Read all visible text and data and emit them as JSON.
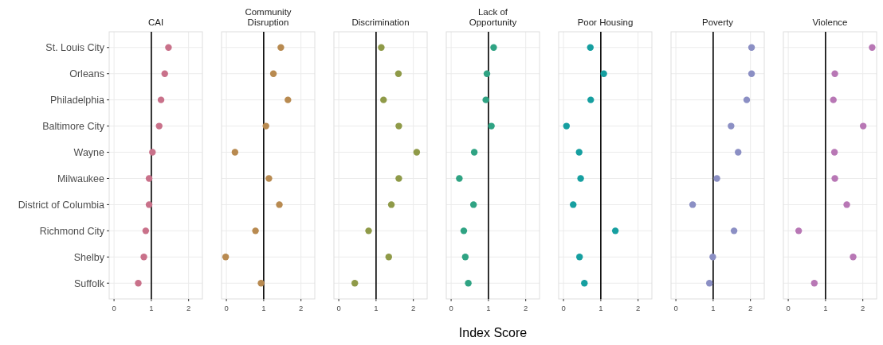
{
  "chart_data": [
    {
      "type": "scatter",
      "title": "CAI",
      "orientation": "horizontal",
      "categories": [
        "St. Louis City",
        "Orleans",
        "Philadelphia",
        "Baltimore City",
        "Wayne",
        "Milwaukee",
        "District of Columbia",
        "Richmond City",
        "Shelby",
        "Suffolk"
      ],
      "values": [
        1.46,
        1.36,
        1.26,
        1.21,
        1.03,
        0.94,
        0.94,
        0.85,
        0.8,
        0.65
      ],
      "color": "#c9718a",
      "xlim": [
        -0.13,
        2.37
      ],
      "xticks": [
        0,
        1,
        2
      ],
      "grid": true,
      "marker": "circle",
      "ref_lines": [
        {
          "axis": "x",
          "value": 1,
          "color": "#000000"
        }
      ]
    },
    {
      "type": "scatter",
      "title": "Community Disruption",
      "orientation": "horizontal",
      "tick_labels": "x",
      "categories": [
        "St. Louis City",
        "Orleans",
        "Philadelphia",
        "Baltimore City",
        "Wayne",
        "Milwaukee",
        "District of Columbia",
        "Richmond City",
        "Shelby",
        "Suffolk"
      ],
      "values": [
        1.46,
        1.26,
        1.65,
        1.06,
        0.23,
        1.14,
        1.42,
        0.78,
        -0.02,
        0.93
      ],
      "color": "#b88a50",
      "xlim": [
        -0.13,
        2.37
      ],
      "xticks": [
        0,
        1,
        2
      ],
      "grid": true,
      "marker": "circle",
      "ref_lines": [
        {
          "axis": "x",
          "value": 1,
          "color": "#000000"
        }
      ]
    },
    {
      "type": "scatter",
      "title": "Discrimination",
      "orientation": "horizontal",
      "tick_labels": "x",
      "categories": [
        "St. Louis City",
        "Orleans",
        "Philadelphia",
        "Baltimore City",
        "Wayne",
        "Milwaukee",
        "District of Columbia",
        "Richmond City",
        "Shelby",
        "Suffolk"
      ],
      "values": [
        1.14,
        1.6,
        1.2,
        1.61,
        2.09,
        1.61,
        1.41,
        0.8,
        1.34,
        0.43
      ],
      "color": "#8f9a48",
      "xlim": [
        -0.13,
        2.37
      ],
      "xticks": [
        0,
        1,
        2
      ],
      "grid": true,
      "marker": "circle",
      "ref_lines": [
        {
          "axis": "x",
          "value": 1,
          "color": "#000000"
        }
      ]
    },
    {
      "type": "scatter",
      "title": "Lack of Opportunity",
      "xlabel": "Index Score",
      "orientation": "horizontal",
      "tick_labels": "x",
      "categories": [
        "St. Louis City",
        "Orleans",
        "Philadelphia",
        "Baltimore City",
        "Wayne",
        "Milwaukee",
        "District of Columbia",
        "Richmond City",
        "Shelby",
        "Suffolk"
      ],
      "values": [
        1.14,
        0.96,
        0.93,
        1.08,
        0.62,
        0.22,
        0.6,
        0.34,
        0.38,
        0.46
      ],
      "color": "#2fa383",
      "xlim": [
        -0.13,
        2.37
      ],
      "xticks": [
        0,
        1,
        2
      ],
      "grid": true,
      "marker": "circle",
      "ref_lines": [
        {
          "axis": "x",
          "value": 1,
          "color": "#000000"
        }
      ]
    },
    {
      "type": "scatter",
      "title": "Poor Housing",
      "orientation": "horizontal",
      "tick_labels": "x",
      "categories": [
        "St. Louis City",
        "Orleans",
        "Philadelphia",
        "Baltimore City",
        "Wayne",
        "Milwaukee",
        "District of Columbia",
        "Richmond City",
        "Shelby",
        "Suffolk"
      ],
      "values": [
        0.72,
        1.08,
        0.73,
        0.08,
        0.42,
        0.46,
        0.26,
        1.39,
        0.43,
        0.56
      ],
      "color": "#169fa0",
      "xlim": [
        -0.13,
        2.37
      ],
      "xticks": [
        0,
        1,
        2
      ],
      "grid": true,
      "marker": "circle",
      "ref_lines": [
        {
          "axis": "x",
          "value": 1,
          "color": "#000000"
        }
      ]
    },
    {
      "type": "scatter",
      "title": "Poverty",
      "orientation": "horizontal",
      "tick_labels": "x",
      "categories": [
        "St. Louis City",
        "Orleans",
        "Philadelphia",
        "Baltimore City",
        "Wayne",
        "Milwaukee",
        "District of Columbia",
        "Richmond City",
        "Shelby",
        "Suffolk"
      ],
      "values": [
        2.03,
        2.03,
        1.9,
        1.48,
        1.67,
        1.1,
        0.45,
        1.56,
        0.99,
        0.9
      ],
      "color": "#8b8fc4",
      "xlim": [
        -0.13,
        2.37
      ],
      "xticks": [
        0,
        1,
        2
      ],
      "grid": true,
      "marker": "circle",
      "ref_lines": [
        {
          "axis": "x",
          "value": 1,
          "color": "#000000"
        }
      ]
    },
    {
      "type": "scatter",
      "title": "Violence",
      "orientation": "horizontal",
      "tick_labels": "x",
      "categories": [
        "St. Louis City",
        "Orleans",
        "Philadelphia",
        "Baltimore City",
        "Wayne",
        "Milwaukee",
        "District of Columbia",
        "Richmond City",
        "Shelby",
        "Suffolk"
      ],
      "values": [
        2.25,
        1.25,
        1.21,
        2.01,
        1.24,
        1.25,
        1.57,
        0.28,
        1.74,
        0.7
      ],
      "color": "#b877b5",
      "xlim": [
        -0.13,
        2.37
      ],
      "xticks": [
        0,
        1,
        2
      ],
      "grid": true,
      "marker": "circle",
      "ref_lines": [
        {
          "axis": "x",
          "value": 1,
          "color": "#000000"
        }
      ]
    }
  ]
}
